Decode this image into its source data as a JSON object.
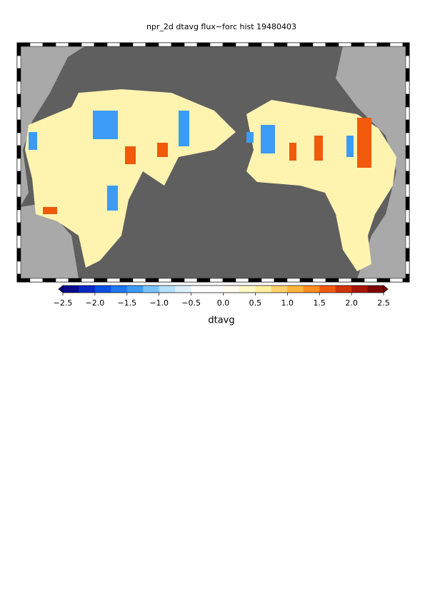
{
  "map": {
    "title": "npr_2d dtavg flux−forc hist 19480403",
    "colorbar": {
      "label": "dtavg",
      "range": [
        -2.5,
        2.5
      ],
      "ticks": [
        {
          "value": -2.5,
          "label": "−2.5"
        },
        {
          "value": -2.0,
          "label": "−2.0"
        },
        {
          "value": -1.5,
          "label": "−1.5"
        },
        {
          "value": -1.0,
          "label": "−1.0"
        },
        {
          "value": -0.5,
          "label": "−0.5"
        },
        {
          "value": 0.0,
          "label": "0.0"
        },
        0.5,
        {
          "value": 1.0,
          "label": "1.0"
        },
        1.5,
        {
          "value": 2.0,
          "label": "2.0"
        },
        2.5
      ],
      "colors": [
        "#0a0a8c",
        "#0a28c8",
        "#0a50e6",
        "#1e78f0",
        "#3c9bf5",
        "#78c3fa",
        "#b4e1fc",
        "#dcf0fe",
        "#ffffff",
        "#ffffff",
        "#fffff0",
        "#fffac8",
        "#fff0a0",
        "#ffd26e",
        "#ffb43c",
        "#ff8c1e",
        "#f05a0a",
        "#d23205",
        "#aa140a",
        "#7d0505"
      ]
    }
  }
}
